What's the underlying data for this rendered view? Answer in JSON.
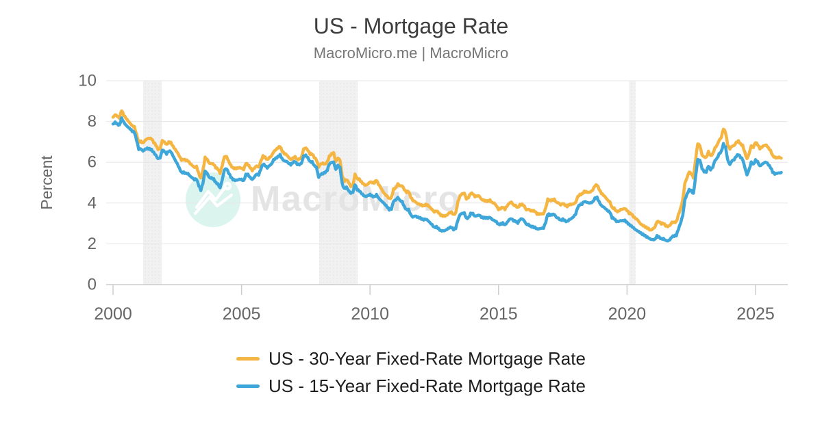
{
  "header": {
    "title": "US - Mortgage Rate",
    "subtitle": "MacroMicro.me | MacroMicro"
  },
  "watermark": {
    "brand_text": "MacroMicro"
  },
  "chart_data": {
    "type": "line",
    "title": "US - Mortgage Rate",
    "source_label": "MacroMicro.me | MacroMicro",
    "xlabel": "",
    "ylabel": "Percent",
    "ylim": [
      0,
      10
    ],
    "yticks": [
      0,
      2,
      4,
      6,
      8,
      10
    ],
    "xticks": [
      2000,
      2005,
      2010,
      2015,
      2020,
      2025
    ],
    "x_start": 2000,
    "points_per_year": 12,
    "grid": true,
    "legend_position": "bottom",
    "axis_color": "#cccccc",
    "grid_color": "#e6e6e6",
    "tick_label_color": "#666666",
    "band_color": "#f1f1f1",
    "recession_bands": [
      {
        "from": 2001.17,
        "to": 2001.9
      },
      {
        "from": 2008.02,
        "to": 2009.52
      },
      {
        "from": 2020.08,
        "to": 2020.33
      }
    ],
    "series": [
      {
        "name": "US - 30-Year Fixed-Rate Mortgage Rate",
        "color": "#f5b543",
        "values": [
          8.21,
          8.33,
          8.24,
          8.15,
          8.52,
          8.29,
          8.15,
          8.03,
          7.91,
          7.8,
          7.75,
          7.38,
          7.03,
          7.05,
          6.95,
          7.08,
          7.15,
          7.16,
          7.13,
          6.95,
          6.82,
          6.62,
          6.66,
          7.07,
          7.0,
          6.89,
          7.01,
          6.99,
          6.81,
          6.65,
          6.49,
          6.29,
          6.09,
          6.11,
          6.07,
          6.05,
          5.92,
          5.84,
          5.75,
          5.81,
          5.48,
          5.23,
          5.63,
          6.26,
          6.15,
          5.95,
          5.93,
          5.88,
          5.71,
          5.64,
          5.45,
          5.83,
          6.27,
          6.29,
          6.06,
          5.87,
          5.75,
          5.72,
          5.73,
          5.75,
          5.71,
          5.63,
          5.93,
          5.86,
          5.72,
          5.58,
          5.7,
          5.82,
          5.77,
          6.07,
          6.33,
          6.27,
          6.15,
          6.25,
          6.32,
          6.51,
          6.6,
          6.68,
          6.76,
          6.52,
          6.4,
          6.36,
          6.24,
          6.14,
          6.22,
          6.29,
          6.16,
          6.18,
          6.26,
          6.66,
          6.7,
          6.57,
          6.38,
          6.38,
          6.21,
          6.1,
          5.76,
          5.92,
          5.97,
          5.92,
          6.04,
          6.32,
          6.43,
          6.48,
          6.04,
          6.2,
          6.09,
          5.29,
          5.05,
          5.13,
          5.0,
          4.81,
          4.86,
          5.42,
          5.22,
          5.19,
          5.06,
          4.95,
          4.88,
          4.93,
          5.03,
          4.99,
          4.97,
          5.1,
          4.89,
          4.74,
          4.56,
          4.43,
          4.35,
          4.23,
          4.3,
          4.71,
          4.76,
          4.95,
          4.84,
          4.84,
          4.64,
          4.51,
          4.55,
          4.27,
          4.11,
          4.07,
          3.99,
          3.96,
          3.92,
          3.89,
          3.95,
          3.91,
          3.8,
          3.68,
          3.55,
          3.6,
          3.5,
          3.38,
          3.35,
          3.35,
          3.41,
          3.53,
          3.57,
          3.45,
          3.54,
          4.07,
          4.37,
          4.46,
          4.49,
          4.19,
          4.26,
          4.46,
          4.43,
          4.3,
          4.34,
          4.34,
          4.19,
          4.16,
          4.13,
          4.12,
          4.16,
          4.04,
          4.0,
          3.86,
          3.67,
          3.71,
          3.77,
          3.67,
          3.84,
          3.98,
          4.05,
          3.91,
          3.89,
          3.8,
          3.94,
          3.96,
          3.87,
          3.66,
          3.69,
          3.61,
          3.6,
          3.57,
          3.44,
          3.44,
          3.46,
          3.47,
          3.77,
          4.2,
          4.15,
          4.17,
          4.2,
          4.05,
          4.01,
          3.9,
          3.97,
          3.88,
          3.81,
          3.9,
          3.92,
          3.95,
          4.03,
          4.33,
          4.44,
          4.47,
          4.59,
          4.57,
          4.53,
          4.55,
          4.63,
          4.83,
          4.87,
          4.64,
          4.46,
          4.37,
          4.27,
          4.14,
          4.07,
          3.8,
          3.77,
          3.62,
          3.61,
          3.69,
          3.7,
          3.72,
          3.62,
          3.47,
          3.45,
          3.31,
          3.23,
          3.16,
          3.02,
          2.94,
          2.89,
          2.83,
          2.77,
          2.68,
          2.74,
          2.81,
          3.08,
          3.06,
          2.96,
          2.98,
          2.87,
          2.84,
          2.9,
          3.07,
          3.07,
          3.1,
          3.45,
          3.76,
          4.17,
          4.98,
          5.23,
          5.52,
          5.41,
          5.22,
          6.11,
          6.9,
          6.81,
          6.36,
          6.27,
          6.26,
          6.54,
          6.34,
          6.43,
          6.71,
          6.84,
          7.07,
          7.2,
          7.62,
          7.44,
          6.82,
          6.64,
          6.78,
          6.82,
          6.99,
          7.06,
          6.92,
          6.85,
          6.5,
          6.18,
          6.43,
          6.81,
          6.72,
          6.96,
          6.84,
          6.65,
          6.73,
          6.82,
          6.85,
          6.72,
          6.59,
          6.35,
          6.27,
          6.24,
          6.26,
          6.2
        ]
      },
      {
        "name": "US - 15-Year Fixed-Rate Mortgage Rate",
        "color": "#3ea6d8",
        "values": [
          7.88,
          7.98,
          7.9,
          7.84,
          8.18,
          7.99,
          7.83,
          7.72,
          7.62,
          7.5,
          7.44,
          7.06,
          6.62,
          6.65,
          6.55,
          6.65,
          6.7,
          6.68,
          6.64,
          6.5,
          6.36,
          6.18,
          6.21,
          6.59,
          6.51,
          6.39,
          6.52,
          6.5,
          6.31,
          6.11,
          5.94,
          5.72,
          5.52,
          5.53,
          5.48,
          5.46,
          5.32,
          5.23,
          5.13,
          5.15,
          4.84,
          4.61,
          4.97,
          5.57,
          5.45,
          5.26,
          5.25,
          5.2,
          5.03,
          4.95,
          4.75,
          5.15,
          5.62,
          5.67,
          5.45,
          5.25,
          5.13,
          5.1,
          5.12,
          5.17,
          5.17,
          5.11,
          5.42,
          5.42,
          5.28,
          5.16,
          5.28,
          5.41,
          5.36,
          5.64,
          5.88,
          5.82,
          5.71,
          5.83,
          5.92,
          6.14,
          6.22,
          6.3,
          6.39,
          6.18,
          6.07,
          6.05,
          5.94,
          5.86,
          5.96,
          6.02,
          5.88,
          5.87,
          5.95,
          6.32,
          6.36,
          6.24,
          6.05,
          6.04,
          5.85,
          5.76,
          5.26,
          5.4,
          5.42,
          5.47,
          5.58,
          5.9,
          5.98,
          6.01,
          5.65,
          5.86,
          5.76,
          4.97,
          4.72,
          4.79,
          4.61,
          4.48,
          4.52,
          4.89,
          4.63,
          4.57,
          4.46,
          4.36,
          4.32,
          4.38,
          4.44,
          4.37,
          4.33,
          4.43,
          4.26,
          4.14,
          4.03,
          3.91,
          3.79,
          3.65,
          3.69,
          4.08,
          4.14,
          4.28,
          4.14,
          4.09,
          3.85,
          3.7,
          3.7,
          3.44,
          3.31,
          3.36,
          3.3,
          3.26,
          3.2,
          3.16,
          3.2,
          3.14,
          3.04,
          2.95,
          2.83,
          2.86,
          2.77,
          2.66,
          2.65,
          2.65,
          2.7,
          2.77,
          2.79,
          2.68,
          2.74,
          3.14,
          3.43,
          3.5,
          3.53,
          3.27,
          3.31,
          3.51,
          3.5,
          3.36,
          3.38,
          3.4,
          3.29,
          3.25,
          3.25,
          3.24,
          3.29,
          3.19,
          3.15,
          3.1,
          2.97,
          3.0,
          3.04,
          2.94,
          3.05,
          3.19,
          3.22,
          3.11,
          3.08,
          3.0,
          3.17,
          3.22,
          3.13,
          2.96,
          2.96,
          2.88,
          2.86,
          2.83,
          2.74,
          2.74,
          2.76,
          2.76,
          3.03,
          3.44,
          3.39,
          3.41,
          3.44,
          3.3,
          3.27,
          3.17,
          3.23,
          3.16,
          3.11,
          3.2,
          3.24,
          3.32,
          3.44,
          3.77,
          3.9,
          3.93,
          4.06,
          4.04,
          4.01,
          4.02,
          4.08,
          4.26,
          4.3,
          4.07,
          3.89,
          3.81,
          3.71,
          3.6,
          3.53,
          3.25,
          3.21,
          3.09,
          3.09,
          3.14,
          3.15,
          3.17,
          3.07,
          2.97,
          2.89,
          2.8,
          2.69,
          2.62,
          2.54,
          2.46,
          2.4,
          2.33,
          2.28,
          2.22,
          2.21,
          2.23,
          2.41,
          2.35,
          2.27,
          2.27,
          2.18,
          2.14,
          2.19,
          2.33,
          2.36,
          2.39,
          2.7,
          3.01,
          3.39,
          4.17,
          4.45,
          4.67,
          4.63,
          4.48,
          5.31,
          6.14,
          6.1,
          5.68,
          5.52,
          5.51,
          5.8,
          5.62,
          5.74,
          6.08,
          6.2,
          6.43,
          6.55,
          6.92,
          6.76,
          6.12,
          5.89,
          6.07,
          6.11,
          6.28,
          6.36,
          6.22,
          6.12,
          5.73,
          5.38,
          5.66,
          6.02,
          5.92,
          6.13,
          6.04,
          5.83,
          5.9,
          5.97,
          5.99,
          5.86,
          5.72,
          5.5,
          5.41,
          5.45,
          5.48,
          5.5
        ]
      }
    ]
  }
}
